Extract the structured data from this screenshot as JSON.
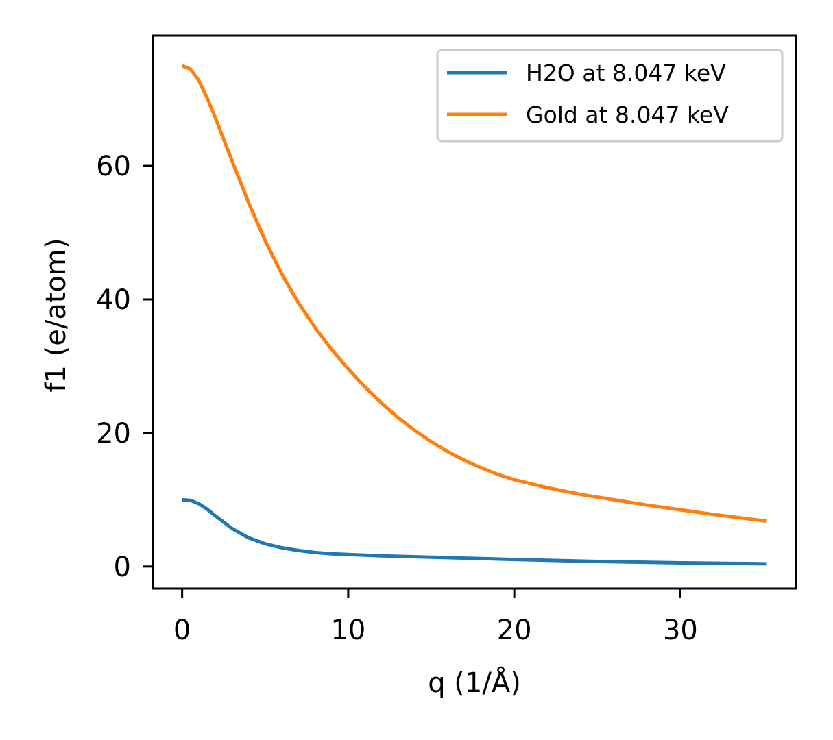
{
  "chart_data": {
    "type": "line",
    "xlabel": "q (1/Å)",
    "ylabel": "f1 (e/atom)",
    "xlim": [
      -1.76,
      36.96
    ],
    "ylim": [
      -3.3,
      79.5
    ],
    "xticks": [
      0,
      10,
      20,
      30
    ],
    "yticks": [
      0,
      20,
      40,
      60
    ],
    "xtick_labels": [
      "0",
      "10",
      "20",
      "30"
    ],
    "ytick_labels": [
      "0",
      "20",
      "40",
      "60"
    ],
    "grid": false,
    "legend_position": "top-right",
    "series": [
      {
        "name": "H2O at 8.047 keV",
        "color": "#1f77b4",
        "x": [
          0,
          0.5,
          1,
          1.5,
          2,
          3,
          4,
          5,
          6,
          7,
          8,
          9,
          10,
          12,
          15,
          20,
          25,
          30,
          35.2
        ],
        "y": [
          10.0,
          9.9,
          9.4,
          8.6,
          7.6,
          5.7,
          4.3,
          3.4,
          2.8,
          2.4,
          2.1,
          1.9,
          1.8,
          1.6,
          1.4,
          1.05,
          0.75,
          0.55,
          0.4
        ]
      },
      {
        "name": "Gold at 8.047 keV",
        "color": "#ff7f0e",
        "x": [
          0,
          0.5,
          1,
          1.5,
          2,
          3,
          4,
          5,
          6,
          7,
          8,
          9,
          10,
          11,
          12,
          13,
          14,
          15,
          16,
          17,
          18,
          19,
          20,
          22,
          24,
          26,
          28,
          30,
          32,
          35.2
        ],
        "y": [
          75.0,
          74.5,
          72.8,
          70.2,
          67.2,
          60.8,
          54.5,
          48.8,
          43.8,
          39.5,
          35.8,
          32.5,
          29.6,
          26.9,
          24.5,
          22.3,
          20.4,
          18.7,
          17.2,
          15.9,
          14.8,
          13.8,
          13.0,
          11.8,
          10.8,
          10.0,
          9.2,
          8.5,
          7.8,
          6.8
        ]
      }
    ]
  }
}
